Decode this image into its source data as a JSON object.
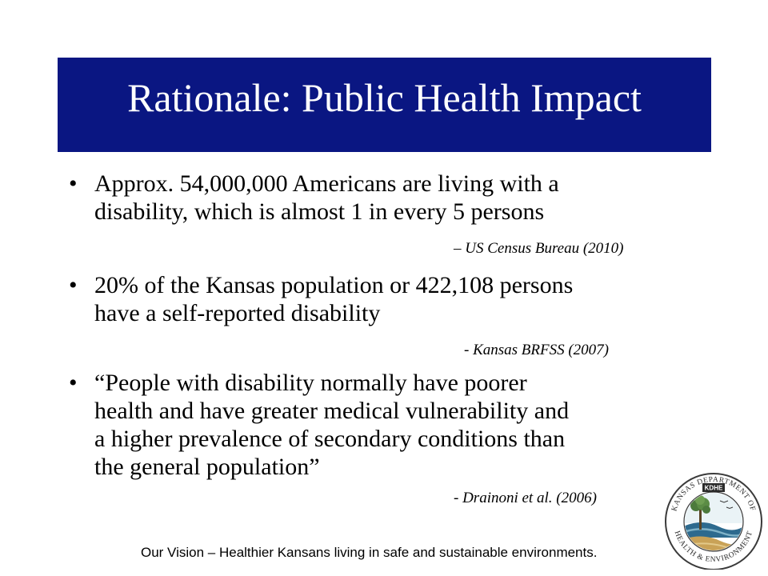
{
  "slide": {
    "title": "Rationale: Public Health Impact",
    "bullets": [
      {
        "marker": "•",
        "lines": [
          "Approx.  54,000,000 Americans are living with a",
          "disability, which is almost 1 in every 5 persons"
        ],
        "citation": "– US Census Bureau (2010)"
      },
      {
        "marker": "•",
        "lines": [
          "20% of the Kansas population or 422,108 persons",
          "have a self-reported disability"
        ],
        "citation": "- Kansas BRFSS (2007)"
      },
      {
        "marker": "•",
        "lines": [
          "“People with disability normally have poorer",
          "health and have greater medical vulnerability and",
          "a higher prevalence of secondary conditions than",
          "the general population”"
        ],
        "citation": "- Drainoni et al. (2006)"
      }
    ],
    "footer": "Our Vision – Healthier Kansans living in safe and sustainable environments.",
    "logo": {
      "text_top": "KANSAS DEPARTMENT OF",
      "text_bottom": "HEALTH & ENVIRONMENT",
      "badge": "KDHE"
    }
  }
}
